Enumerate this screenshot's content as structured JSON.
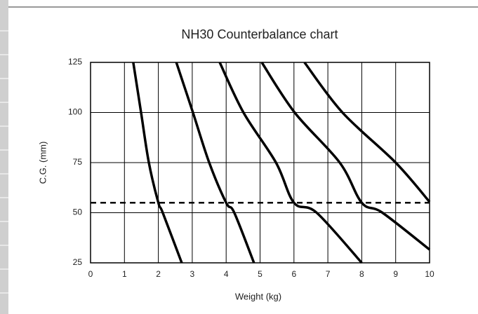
{
  "chart_data": {
    "type": "line",
    "title": "NH30 Counterbalance chart",
    "xlabel": "Weight (kg)",
    "ylabel": "C.G. (mm)",
    "xlim": [
      0,
      10
    ],
    "ylim": [
      25,
      125
    ],
    "xticks": [
      0,
      1,
      2,
      3,
      4,
      5,
      6,
      7,
      8,
      9,
      10
    ],
    "yticks": [
      25,
      50,
      75,
      100,
      125
    ],
    "grid": true,
    "color": "#000000",
    "reference_line": 55,
    "series": [
      {
        "x": [
          1.26,
          1.49,
          1.72,
          2,
          2.13,
          2.69
        ],
        "values": [
          125,
          100,
          75,
          55,
          50,
          25
        ]
      },
      {
        "x": [
          2.53,
          3.02,
          3.5,
          4,
          4.24,
          4.82
        ],
        "values": [
          125,
          100,
          75,
          55,
          50,
          25
        ]
      },
      {
        "x": [
          3.81,
          4.51,
          5.47,
          6,
          6.67,
          8.0
        ],
        "values": [
          125,
          100,
          75,
          55,
          50,
          25
        ]
      },
      {
        "x": [
          5.05,
          6.02,
          7.35,
          8,
          8.61,
          10
        ],
        "values": [
          125,
          100,
          75,
          55,
          50,
          31.6
        ]
      },
      {
        "x": [
          6.31,
          7.43,
          9.0,
          10
        ],
        "values": [
          125,
          100,
          75,
          55.4
        ]
      }
    ]
  }
}
